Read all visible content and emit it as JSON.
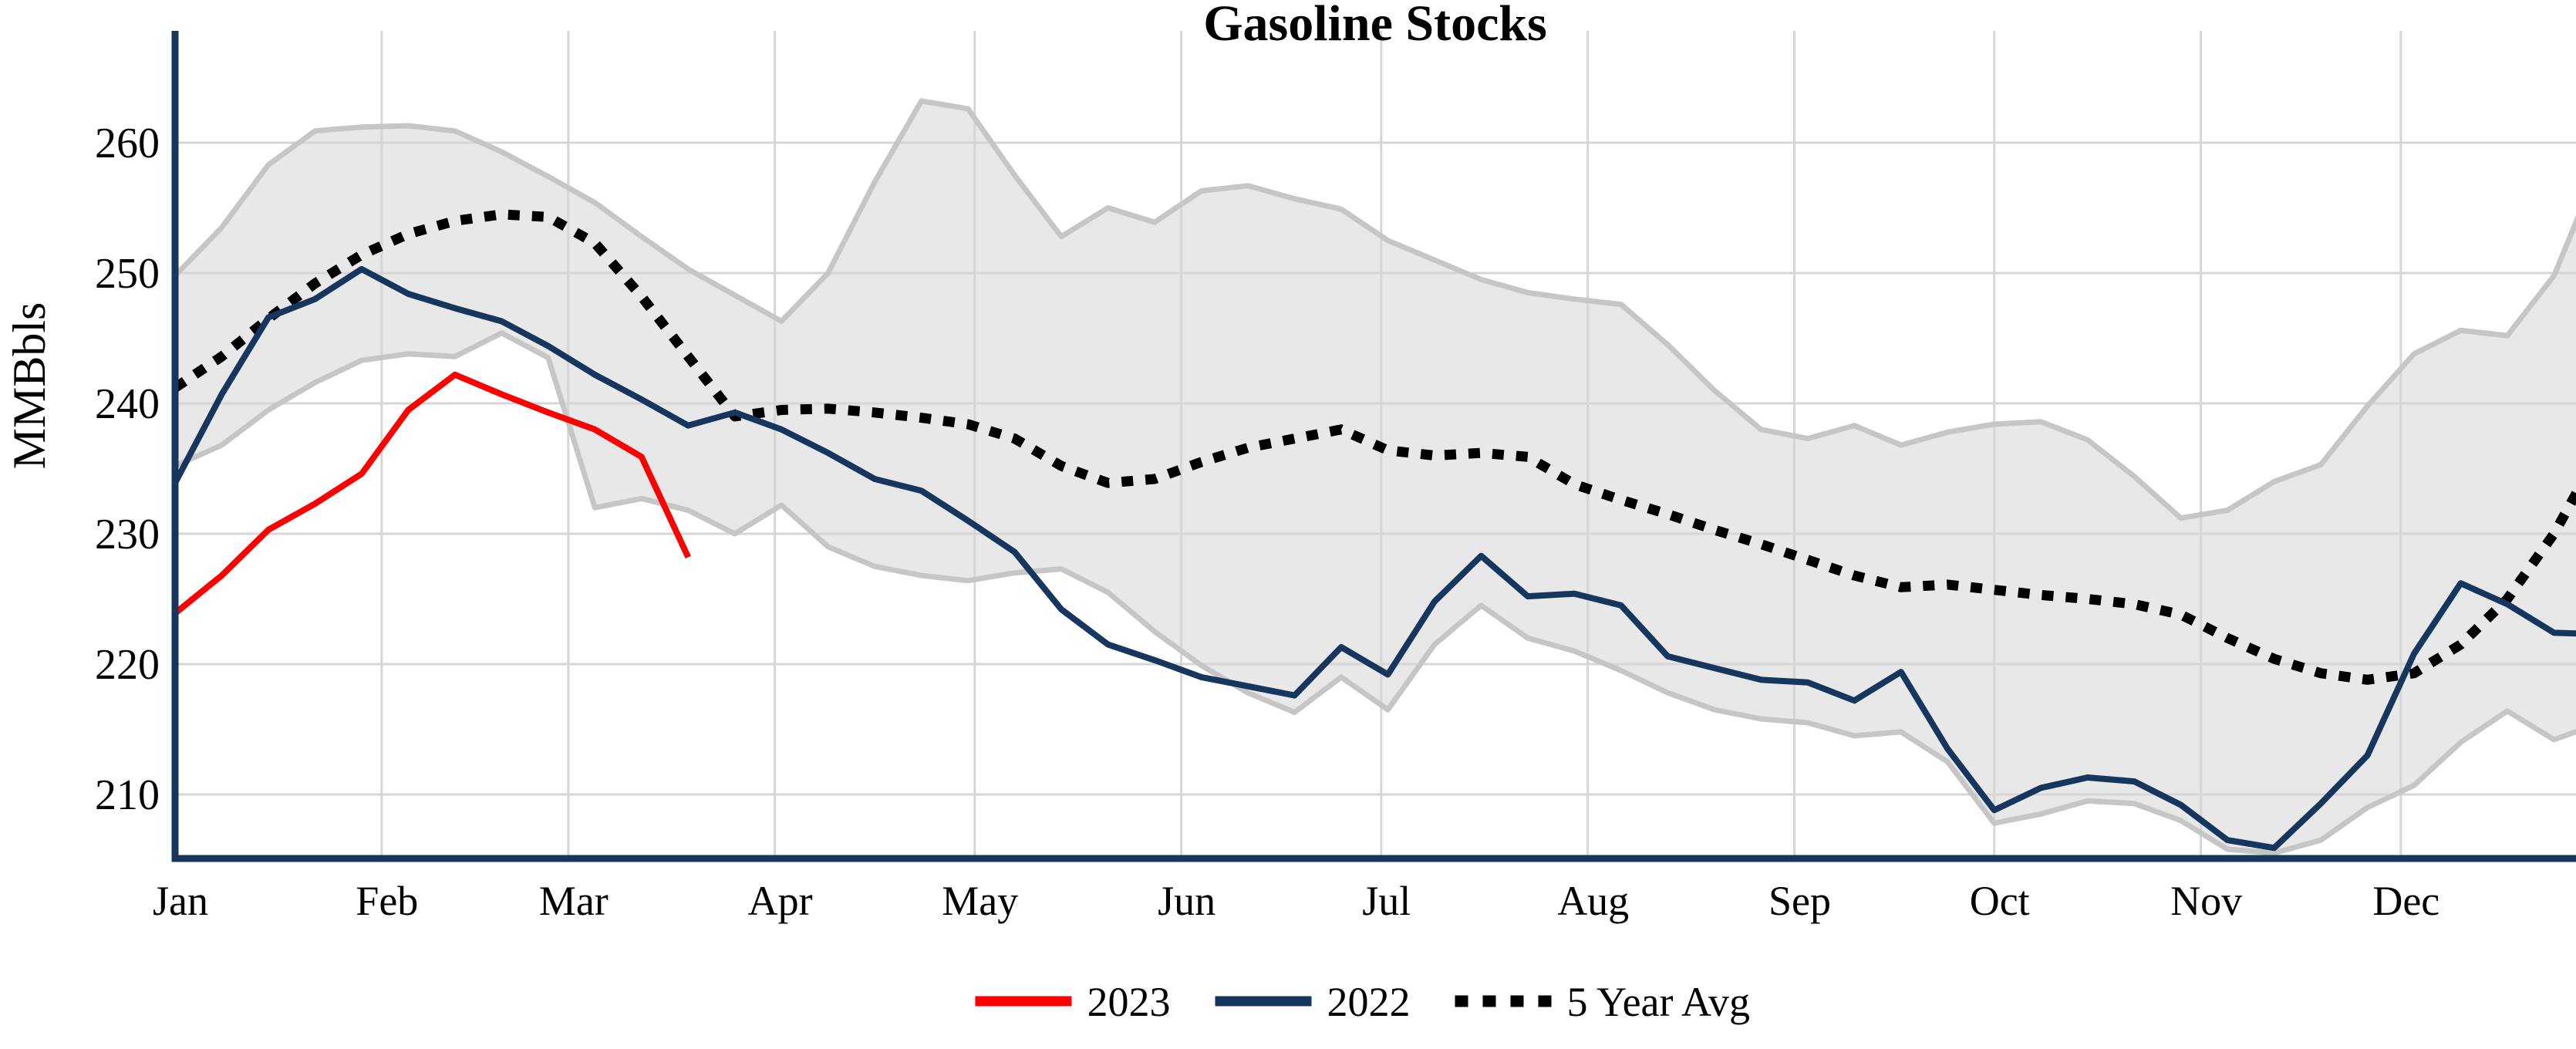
{
  "title": "Gasoline Stocks",
  "y_axis": {
    "label": "MMBbls",
    "tick_values": [
      260,
      250,
      240,
      230,
      220,
      210
    ]
  },
  "x_axis": {
    "month_labels": [
      "Jan",
      "Feb",
      "Mar",
      "Apr",
      "May",
      "Jun",
      "Jul",
      "Aug",
      "Sep",
      "Oct",
      "Nov",
      "Dec"
    ],
    "month_start_days": [
      0,
      31,
      59,
      90,
      120,
      151,
      181,
      212,
      243,
      273,
      304,
      334
    ]
  },
  "legend": {
    "items": [
      {
        "label": "2023",
        "color": "#FF0000",
        "style": "solid"
      },
      {
        "label": "2022",
        "color": "#17365D",
        "style": "solid"
      },
      {
        "label": "5 Year Avg",
        "color": "#000000",
        "style": "dotted"
      }
    ]
  },
  "colors": {
    "background": "#FFFFFF",
    "axis": "#17365D",
    "grid": "#D6D6D6",
    "band_fill": "#E8E8E8",
    "band_edge": "#C6C6C6",
    "series_2023": "#FF0000",
    "series_2022": "#17365D",
    "series_avg": "#000000"
  },
  "chart_data": {
    "type": "line",
    "title": "Gasoline Stocks",
    "ylabel": "MMBbls",
    "x_unit": "day_of_year",
    "x_step_days": 7,
    "ylim": [
      204,
      268
    ],
    "grid": true,
    "legend_position": "bottom-center",
    "series": [
      {
        "name": "2023",
        "color": "#FF0000",
        "dashed": false,
        "start_day": 0,
        "values": [
          223.9,
          226.8,
          230.3,
          232.3,
          234.6,
          239.5,
          242.2,
          240.7,
          239.3,
          238.0,
          235.9,
          228.2
        ]
      },
      {
        "name": "2022",
        "color": "#17365D",
        "dashed": false,
        "start_day": 0,
        "values": [
          233.9,
          240.7,
          246.6,
          248.0,
          250.3,
          248.4,
          247.3,
          246.3,
          244.4,
          242.2,
          240.3,
          238.3,
          239.3,
          238.0,
          236.2,
          234.2,
          233.3,
          231.0,
          228.6,
          224.2,
          221.5,
          220.3,
          219.0,
          218.3,
          217.6,
          221.3,
          219.2,
          224.8,
          228.3,
          225.2,
          225.4,
          224.5,
          220.6,
          219.7,
          218.8,
          218.6,
          217.2,
          219.4,
          213.5,
          208.8,
          210.5,
          211.3,
          211.0,
          209.2,
          206.5,
          205.9,
          209.3,
          213.0,
          220.8,
          226.2,
          224.6,
          222.4,
          222.3
        ]
      },
      {
        "name": "5 Year Avg",
        "color": "#000000",
        "dashed": true,
        "start_day": 0,
        "values": [
          241.2,
          243.6,
          246.5,
          249.2,
          251.4,
          253.0,
          254.0,
          254.5,
          254.3,
          252.3,
          248.2,
          243.6,
          239.0,
          239.5,
          239.6,
          239.3,
          238.9,
          238.4,
          237.3,
          235.2,
          233.9,
          234.2,
          235.5,
          236.6,
          237.3,
          238.0,
          236.4,
          236.0,
          236.2,
          235.9,
          233.8,
          232.6,
          231.5,
          230.3,
          229.2,
          228.0,
          226.8,
          225.9,
          226.1,
          225.7,
          225.3,
          225.0,
          224.6,
          223.8,
          222.0,
          220.4,
          219.3,
          218.8,
          219.3,
          221.5,
          225.0,
          230.0,
          236.5
        ]
      }
    ],
    "band": {
      "name": "5 Year Range",
      "start_day": 0,
      "upper": [
        249.8,
        253.5,
        258.3,
        260.9,
        261.2,
        261.3,
        260.9,
        259.3,
        257.4,
        255.4,
        252.8,
        250.3,
        248.3,
        246.3,
        250.0,
        257.0,
        263.2,
        262.6,
        257.5,
        252.8,
        255.0,
        253.9,
        256.3,
        256.7,
        255.7,
        254.9,
        252.5,
        251.0,
        249.5,
        248.5,
        248.0,
        247.6,
        244.5,
        241.0,
        238.0,
        237.3,
        238.3,
        236.8,
        237.8,
        238.4,
        238.6,
        237.2,
        234.4,
        231.2,
        231.8,
        234.0,
        235.3,
        239.8,
        243.8,
        245.6,
        245.2,
        249.8,
        258.5
      ],
      "lower": [
        235.2,
        236.8,
        239.5,
        241.6,
        243.3,
        243.8,
        243.6,
        245.4,
        243.5,
        232.0,
        232.7,
        231.8,
        230.0,
        232.2,
        229.0,
        227.5,
        226.8,
        226.4,
        227.0,
        227.3,
        225.5,
        222.5,
        219.9,
        217.8,
        216.3,
        219.0,
        216.5,
        221.5,
        224.5,
        222.0,
        221.0,
        219.5,
        217.8,
        216.5,
        215.8,
        215.5,
        214.5,
        214.8,
        212.5,
        207.8,
        208.5,
        209.5,
        209.3,
        208.0,
        205.8,
        205.5,
        206.5,
        209.0,
        210.7,
        214.0,
        216.4,
        214.2,
        215.5
      ]
    }
  }
}
